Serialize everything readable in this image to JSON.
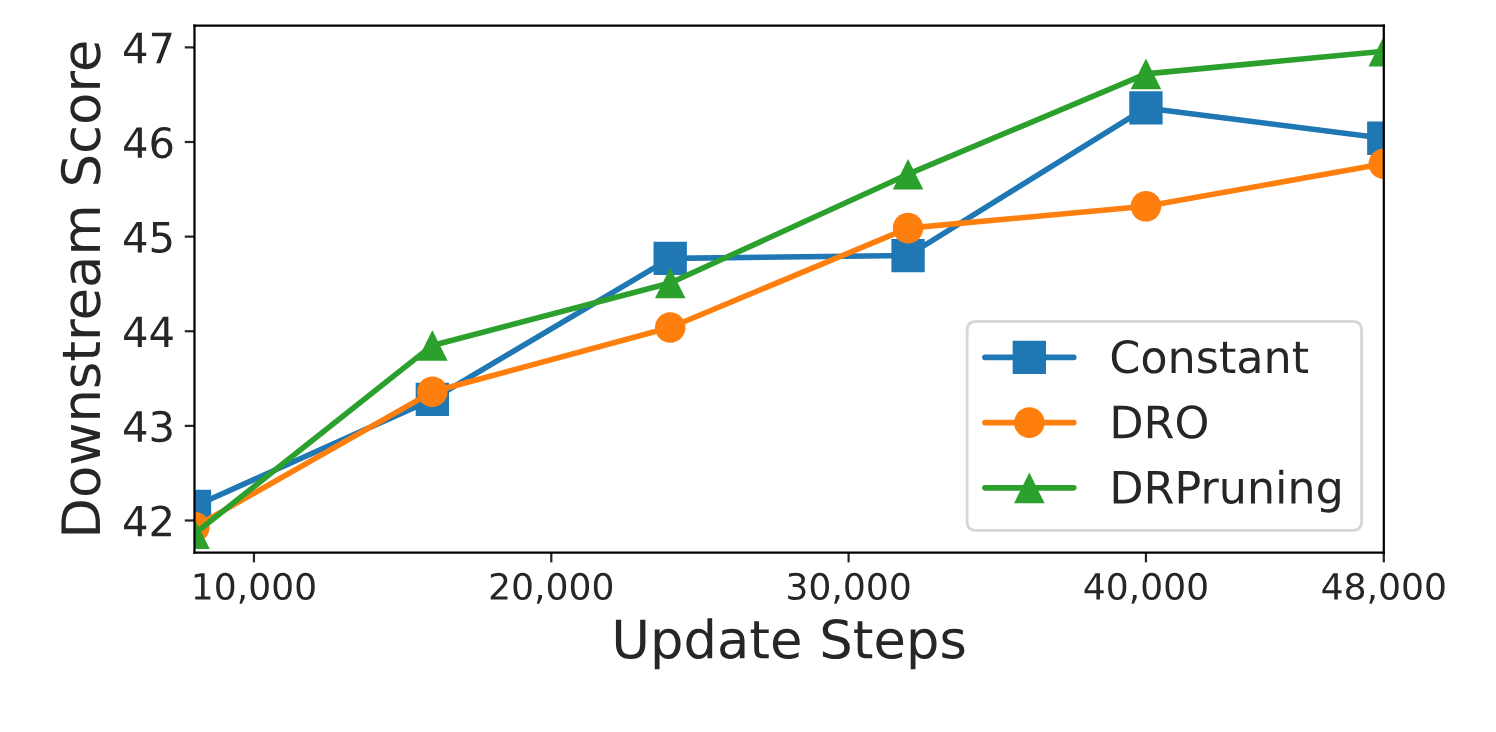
{
  "chart_data": {
    "type": "line",
    "xlabel": "Update Steps",
    "ylabel": "Downstream Score",
    "x": [
      8000,
      16000,
      24000,
      32000,
      40000,
      48000
    ],
    "series": [
      {
        "name": "Constant",
        "color": "#1f77b4",
        "marker": "square",
        "values": [
          42.15,
          43.28,
          44.77,
          44.8,
          46.36,
          46.04
        ]
      },
      {
        "name": "DRO",
        "color": "#ff7f0e",
        "marker": "circle",
        "values": [
          41.93,
          43.36,
          44.04,
          45.09,
          45.32,
          45.77
        ]
      },
      {
        "name": "DRPruning",
        "color": "#2ca02c",
        "marker": "triangle",
        "values": [
          41.86,
          43.85,
          44.51,
          45.66,
          46.72,
          46.96
        ]
      }
    ],
    "xlim": [
      8000,
      48000
    ],
    "xticks": [
      {
        "value": 10000,
        "label": "10,000"
      },
      {
        "value": 20000,
        "label": "20,000"
      },
      {
        "value": 30000,
        "label": "30,000"
      },
      {
        "value": 40000,
        "label": "40,000"
      },
      {
        "value": 48000,
        "label": "48,000"
      }
    ],
    "ylim": [
      41.66,
      47.23
    ],
    "yticks": [
      42,
      43,
      44,
      45,
      46,
      47
    ],
    "grid": false,
    "legend": "bottom right",
    "line_style": "solid"
  }
}
